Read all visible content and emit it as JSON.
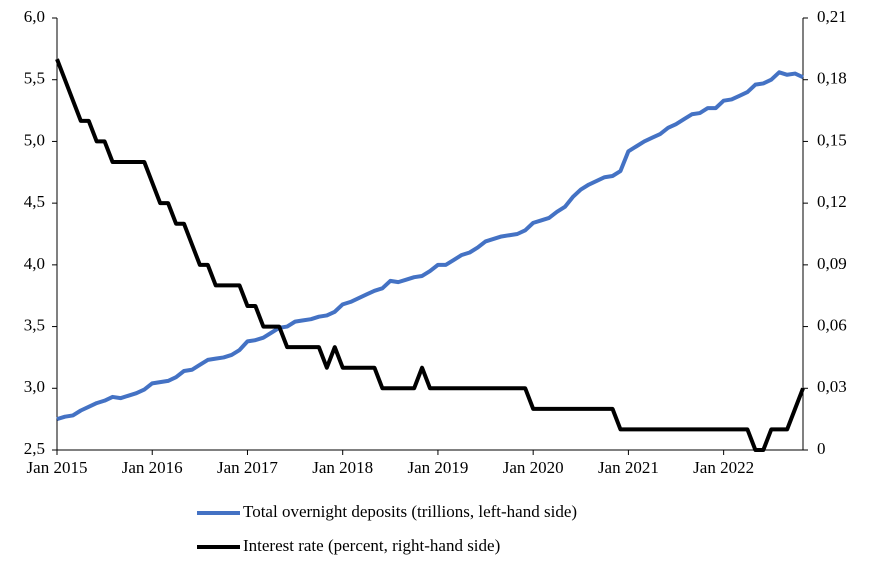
{
  "chart_data": {
    "type": "line",
    "x": [
      "2015-01",
      "2015-02",
      "2015-03",
      "2015-04",
      "2015-05",
      "2015-06",
      "2015-07",
      "2015-08",
      "2015-09",
      "2015-10",
      "2015-11",
      "2015-12",
      "2016-01",
      "2016-02",
      "2016-03",
      "2016-04",
      "2016-05",
      "2016-06",
      "2016-07",
      "2016-08",
      "2016-09",
      "2016-10",
      "2016-11",
      "2016-12",
      "2017-01",
      "2017-02",
      "2017-03",
      "2017-04",
      "2017-05",
      "2017-06",
      "2017-07",
      "2017-08",
      "2017-09",
      "2017-10",
      "2017-11",
      "2017-12",
      "2018-01",
      "2018-02",
      "2018-03",
      "2018-04",
      "2018-05",
      "2018-06",
      "2018-07",
      "2018-08",
      "2018-09",
      "2018-10",
      "2018-11",
      "2018-12",
      "2019-01",
      "2019-02",
      "2019-03",
      "2019-04",
      "2019-05",
      "2019-06",
      "2019-07",
      "2019-08",
      "2019-09",
      "2019-10",
      "2019-11",
      "2019-12",
      "2020-01",
      "2020-02",
      "2020-03",
      "2020-04",
      "2020-05",
      "2020-06",
      "2020-07",
      "2020-08",
      "2020-09",
      "2020-10",
      "2020-11",
      "2020-12",
      "2021-01",
      "2021-02",
      "2021-03",
      "2021-04",
      "2021-05",
      "2021-06",
      "2021-07",
      "2021-08",
      "2021-09",
      "2021-10",
      "2021-11",
      "2021-12",
      "2022-01",
      "2022-02",
      "2022-03",
      "2022-04",
      "2022-05",
      "2022-06",
      "2022-07",
      "2022-08",
      "2022-09",
      "2022-10",
      "2022-11"
    ],
    "xlim": [
      "2015-01",
      "2022-11"
    ],
    "xticks": [
      {
        "value": "2015-01",
        "label": "Jan 2015"
      },
      {
        "value": "2016-01",
        "label": "Jan 2016"
      },
      {
        "value": "2017-01",
        "label": "Jan 2017"
      },
      {
        "value": "2018-01",
        "label": "Jan 2018"
      },
      {
        "value": "2019-01",
        "label": "Jan 2019"
      },
      {
        "value": "2020-01",
        "label": "Jan 2020"
      },
      {
        "value": "2021-01",
        "label": "Jan 2021"
      },
      {
        "value": "2022-01",
        "label": "Jan 2022"
      }
    ],
    "ylim": [
      2.5,
      6.0
    ],
    "yticks": [
      {
        "value": 2.5,
        "label": "2,5"
      },
      {
        "value": 3.0,
        "label": "3,0"
      },
      {
        "value": 3.5,
        "label": "3,5"
      },
      {
        "value": 4.0,
        "label": "4,0"
      },
      {
        "value": 4.5,
        "label": "4,5"
      },
      {
        "value": 5.0,
        "label": "5,0"
      },
      {
        "value": 5.5,
        "label": "5,5"
      },
      {
        "value": 6.0,
        "label": "6,0"
      }
    ],
    "y2lim": [
      0,
      0.21
    ],
    "y2ticks": [
      0,
      {
        "value": 0.03,
        "label": "0,03"
      },
      {
        "value": 0.06,
        "label": "0,06"
      },
      {
        "value": 0.09,
        "label": "0,09"
      },
      {
        "value": 0.12,
        "label": "0,12"
      },
      {
        "value": 0.15,
        "label": "0,15"
      },
      {
        "value": 0.18,
        "label": "0,18"
      },
      {
        "value": 0.21,
        "label": "0,21"
      }
    ],
    "series": [
      {
        "name": "Total overnight deposits (trillions, left-hand side)",
        "color": "#4472c4",
        "values": [
          2.75,
          2.77,
          2.78,
          2.82,
          2.85,
          2.88,
          2.9,
          2.93,
          2.92,
          2.94,
          2.96,
          2.99,
          3.04,
          3.05,
          3.06,
          3.09,
          3.14,
          3.15,
          3.19,
          3.23,
          3.24,
          3.25,
          3.27,
          3.31,
          3.38,
          3.39,
          3.41,
          3.45,
          3.49,
          3.5,
          3.54,
          3.55,
          3.56,
          3.58,
          3.59,
          3.62,
          3.68,
          3.7,
          3.73,
          3.76,
          3.79,
          3.81,
          3.87,
          3.86,
          3.88,
          3.9,
          3.91,
          3.95,
          4.0,
          4.0,
          4.04,
          4.08,
          4.1,
          4.14,
          4.19,
          4.21,
          4.23,
          4.24,
          4.25,
          4.28,
          4.34,
          4.36,
          4.38,
          4.43,
          4.47,
          4.55,
          4.61,
          4.65,
          4.68,
          4.71,
          4.72,
          4.76,
          4.92,
          4.96,
          5.0,
          5.03,
          5.06,
          5.11,
          5.14,
          5.18,
          5.22,
          5.23,
          5.27,
          5.27,
          5.33,
          5.34,
          5.37,
          5.4,
          5.46,
          5.47,
          5.5,
          5.56,
          5.54,
          5.55,
          5.52
        ]
      },
      {
        "name": "Interest rate (percent, right-hand side)",
        "color": "#000000",
        "axis": "y2",
        "values": [
          0.19,
          0.18,
          0.17,
          0.16,
          0.16,
          0.15,
          0.15,
          0.14,
          0.14,
          0.14,
          0.14,
          0.14,
          0.13,
          0.12,
          0.12,
          0.11,
          0.11,
          0.1,
          0.09,
          0.09,
          0.08,
          0.08,
          0.08,
          0.08,
          0.07,
          0.07,
          0.06,
          0.06,
          0.06,
          0.05,
          0.05,
          0.05,
          0.05,
          0.05,
          0.04,
          0.05,
          0.04,
          0.04,
          0.04,
          0.04,
          0.04,
          0.03,
          0.03,
          0.03,
          0.03,
          0.03,
          0.04,
          0.03,
          0.03,
          0.03,
          0.03,
          0.03,
          0.03,
          0.03,
          0.03,
          0.03,
          0.03,
          0.03,
          0.03,
          0.03,
          0.02,
          0.02,
          0.02,
          0.02,
          0.02,
          0.02,
          0.02,
          0.02,
          0.02,
          0.02,
          0.02,
          0.01,
          0.01,
          0.01,
          0.01,
          0.01,
          0.01,
          0.01,
          0.01,
          0.01,
          0.01,
          0.01,
          0.01,
          0.01,
          0.01,
          0.01,
          0.01,
          0.01,
          0,
          0,
          0.01,
          0.01,
          0.01,
          0.02,
          0.03
        ]
      }
    ]
  }
}
